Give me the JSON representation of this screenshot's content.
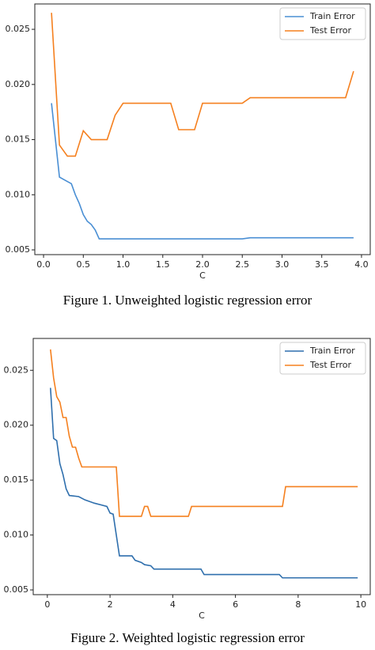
{
  "chart_data": [
    {
      "type": "line",
      "caption": "Figure 1. Unweighted logistic regression error",
      "x_label": "C",
      "xlim": [
        -0.11,
        4.11
      ],
      "ylim": [
        0.00457,
        0.0273
      ],
      "xticks": [
        {
          "value": 0,
          "label": "0.0"
        },
        0.5,
        {
          "value": 1,
          "label": "1.0"
        },
        1.5,
        {
          "value": 2,
          "label": "2.0"
        },
        2.5,
        {
          "value": 3,
          "label": "3.0"
        },
        3.5,
        {
          "value": 4,
          "label": "4.0"
        }
      ],
      "yticks": [
        0.005,
        {
          "value": 0.01,
          "label": "0.010"
        },
        0.015,
        {
          "value": 0.02,
          "label": "0.020"
        },
        0.025
      ],
      "legend": "upper right",
      "series": [
        {
          "name": "Train Error",
          "color": "#4a8fd4",
          "x": [
            0.1,
            0.2,
            0.3,
            0.35,
            0.4,
            0.45,
            0.5,
            0.55,
            0.6,
            0.65,
            0.7,
            2.5,
            2.6,
            3.9
          ],
          "values": [
            0.0183,
            0.0116,
            0.0112,
            0.011,
            0.01,
            0.0092,
            0.0082,
            0.0076,
            0.0073,
            0.0068,
            0.006,
            0.006,
            0.0061,
            0.0061
          ]
        },
        {
          "name": "Test Error",
          "color": "#f5801f",
          "x": [
            0.1,
            0.2,
            0.3,
            0.4,
            0.5,
            0.6,
            0.8,
            0.9,
            1.0,
            1.6,
            1.7,
            1.9,
            2.0,
            2.5,
            2.6,
            3.8,
            3.9
          ],
          "values": [
            0.0265,
            0.0145,
            0.0135,
            0.0135,
            0.0158,
            0.015,
            0.015,
            0.0172,
            0.0183,
            0.0183,
            0.0159,
            0.0159,
            0.0183,
            0.0183,
            0.0188,
            0.0188,
            0.0212
          ]
        }
      ]
    },
    {
      "type": "line",
      "caption": "Figure 2. Weighted logistic regression error",
      "x_label": "C",
      "xlim": [
        -0.45,
        10.3
      ],
      "ylim": [
        0.00457,
        0.0279
      ],
      "xticks": [
        0,
        2,
        4,
        6,
        8,
        10
      ],
      "yticks": [
        0.005,
        {
          "value": 0.01,
          "label": "0.010"
        },
        0.015,
        {
          "value": 0.02,
          "label": "0.020"
        },
        0.025
      ],
      "legend": "upper right",
      "series": [
        {
          "name": "Train Error",
          "color": "#2f6fad",
          "x": [
            0.1,
            0.2,
            0.3,
            0.4,
            0.5,
            0.6,
            0.7,
            1.0,
            1.2,
            1.5,
            1.9,
            2.0,
            2.1,
            2.2,
            2.3,
            2.7,
            2.8,
            3.0,
            3.1,
            3.3,
            3.4,
            4.9,
            5.0,
            7.4,
            7.5,
            9.9
          ],
          "values": [
            0.0234,
            0.0188,
            0.0186,
            0.0165,
            0.0155,
            0.0142,
            0.0136,
            0.0135,
            0.0132,
            0.0129,
            0.0126,
            0.012,
            0.0119,
            0.01,
            0.0081,
            0.0081,
            0.0077,
            0.0075,
            0.0073,
            0.0072,
            0.0069,
            0.0069,
            0.0064,
            0.0064,
            0.0061,
            0.0061
          ]
        },
        {
          "name": "Test Error",
          "color": "#f5801f",
          "x": [
            0.1,
            0.2,
            0.3,
            0.4,
            0.5,
            0.6,
            0.7,
            0.8,
            0.9,
            1.0,
            1.1,
            2.2,
            2.3,
            3.0,
            3.1,
            3.2,
            3.3,
            4.5,
            4.6,
            7.5,
            7.6,
            9.9
          ],
          "values": [
            0.0269,
            0.0243,
            0.0226,
            0.0221,
            0.0207,
            0.0207,
            0.019,
            0.018,
            0.018,
            0.017,
            0.0162,
            0.0162,
            0.0117,
            0.0117,
            0.0126,
            0.0126,
            0.0117,
            0.0117,
            0.0126,
            0.0126,
            0.0144,
            0.0144
          ]
        }
      ]
    }
  ]
}
